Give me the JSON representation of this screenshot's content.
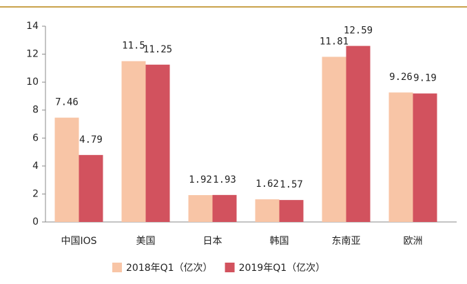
{
  "chart_data": {
    "type": "bar",
    "categories": [
      "中国IOS",
      "美国",
      "日本",
      "韩国",
      "东南亚",
      "欧洲"
    ],
    "series": [
      {
        "name": "2018年Q1（亿次）",
        "color": "#f8c5a6",
        "values": [
          7.46,
          11.5,
          1.92,
          1.62,
          11.81,
          9.26
        ]
      },
      {
        "name": "2019年Q1（亿次）",
        "color": "#d2525e",
        "values": [
          4.79,
          11.25,
          1.93,
          1.57,
          12.59,
          9.19
        ]
      }
    ],
    "ylim": [
      0,
      14
    ],
    "yticks": [
      0,
      2,
      4,
      6,
      8,
      10,
      12,
      14
    ],
    "legend": "bottom"
  }
}
